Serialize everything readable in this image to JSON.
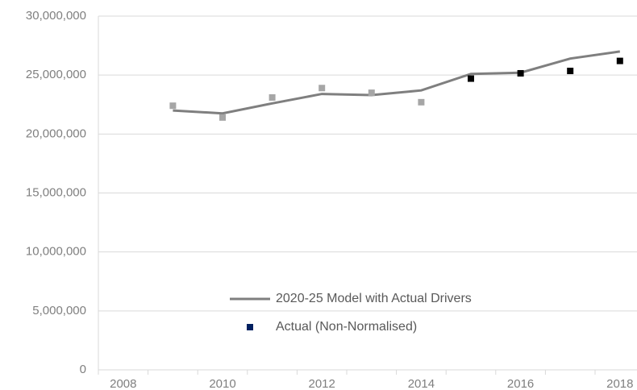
{
  "chart_data": {
    "type": "line",
    "categories": [
      "2008",
      null,
      "2010",
      null,
      "2012",
      null,
      "2014",
      null,
      "2016",
      null,
      "2018"
    ],
    "ylim": [
      0,
      30000000
    ],
    "yticks": [
      0,
      {
        "value": 5000000,
        "label": "5,000,000"
      },
      {
        "value": 10000000,
        "label": "10,000,000"
      },
      {
        "value": 15000000,
        "label": "15,000,000"
      },
      {
        "value": 20000000,
        "label": "20,000,000"
      },
      {
        "value": 25000000,
        "label": "25,000,000"
      },
      {
        "value": 30000000,
        "label": "30,000,000"
      }
    ],
    "grid": true,
    "series": [
      {
        "name": "2020-25 Model with Actual Drivers",
        "type": "line",
        "color": "#7f7f7f",
        "values": [
          null,
          22000000,
          21750000,
          22600000,
          23400000,
          23300000,
          23700000,
          25100000,
          25200000,
          26400000,
          27000000
        ]
      },
      {
        "name": "Actual (Non-Normalised)",
        "type": "scatter",
        "color": "#002060",
        "point_colors": [
          null,
          "#a6a6a6",
          "#a6a6a6",
          "#a6a6a6",
          "#a6a6a6",
          "#a6a6a6",
          "#a6a6a6",
          "#000000",
          "#000000",
          "#000000",
          "#000000"
        ],
        "values": [
          null,
          22400000,
          21400000,
          23100000,
          23900000,
          23500000,
          22700000,
          24700000,
          25150000,
          25350000,
          26200000
        ]
      }
    ]
  }
}
